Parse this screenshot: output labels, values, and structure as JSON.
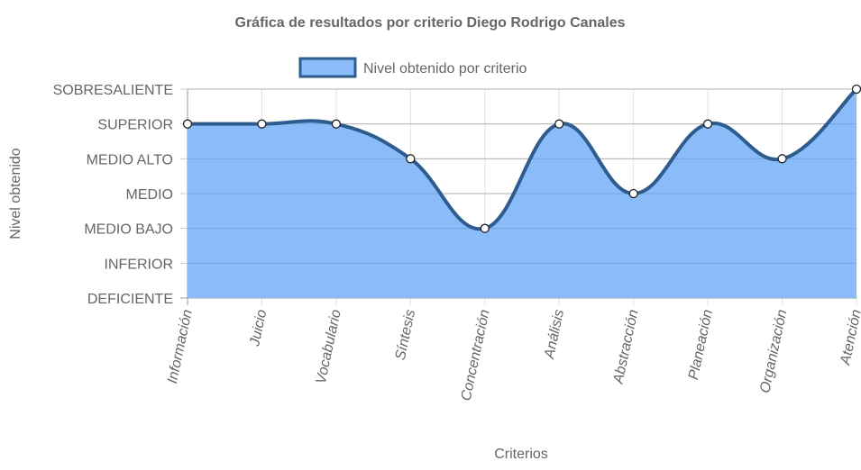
{
  "chart_data": {
    "type": "area",
    "title": "Gráfica de resultados por criterio Diego Rodrigo Canales",
    "xlabel": "Criterios",
    "ylabel": "Nivel obtenido",
    "categories": [
      "Información",
      "Juicio",
      "Vocabulario",
      "Síntesis",
      "Concentración",
      "Análisis",
      "Abstracción",
      "Planeación",
      "Organización",
      "Atención"
    ],
    "y_levels": [
      "DEFICIENTE",
      "INFERIOR",
      "MEDIO BAJO",
      "MEDIO",
      "MEDIO ALTO",
      "SUPERIOR",
      "SOBRESALIENTE"
    ],
    "ylim": [
      0,
      6
    ],
    "series": [
      {
        "name": "Nivel obtenido por criterio",
        "values": [
          5,
          5,
          5,
          4,
          2,
          5,
          3,
          5,
          4,
          6
        ],
        "line_color": "#2f5c8f",
        "fill_color": "#8abcf9"
      }
    ],
    "grid": true,
    "legend_position": "top"
  }
}
